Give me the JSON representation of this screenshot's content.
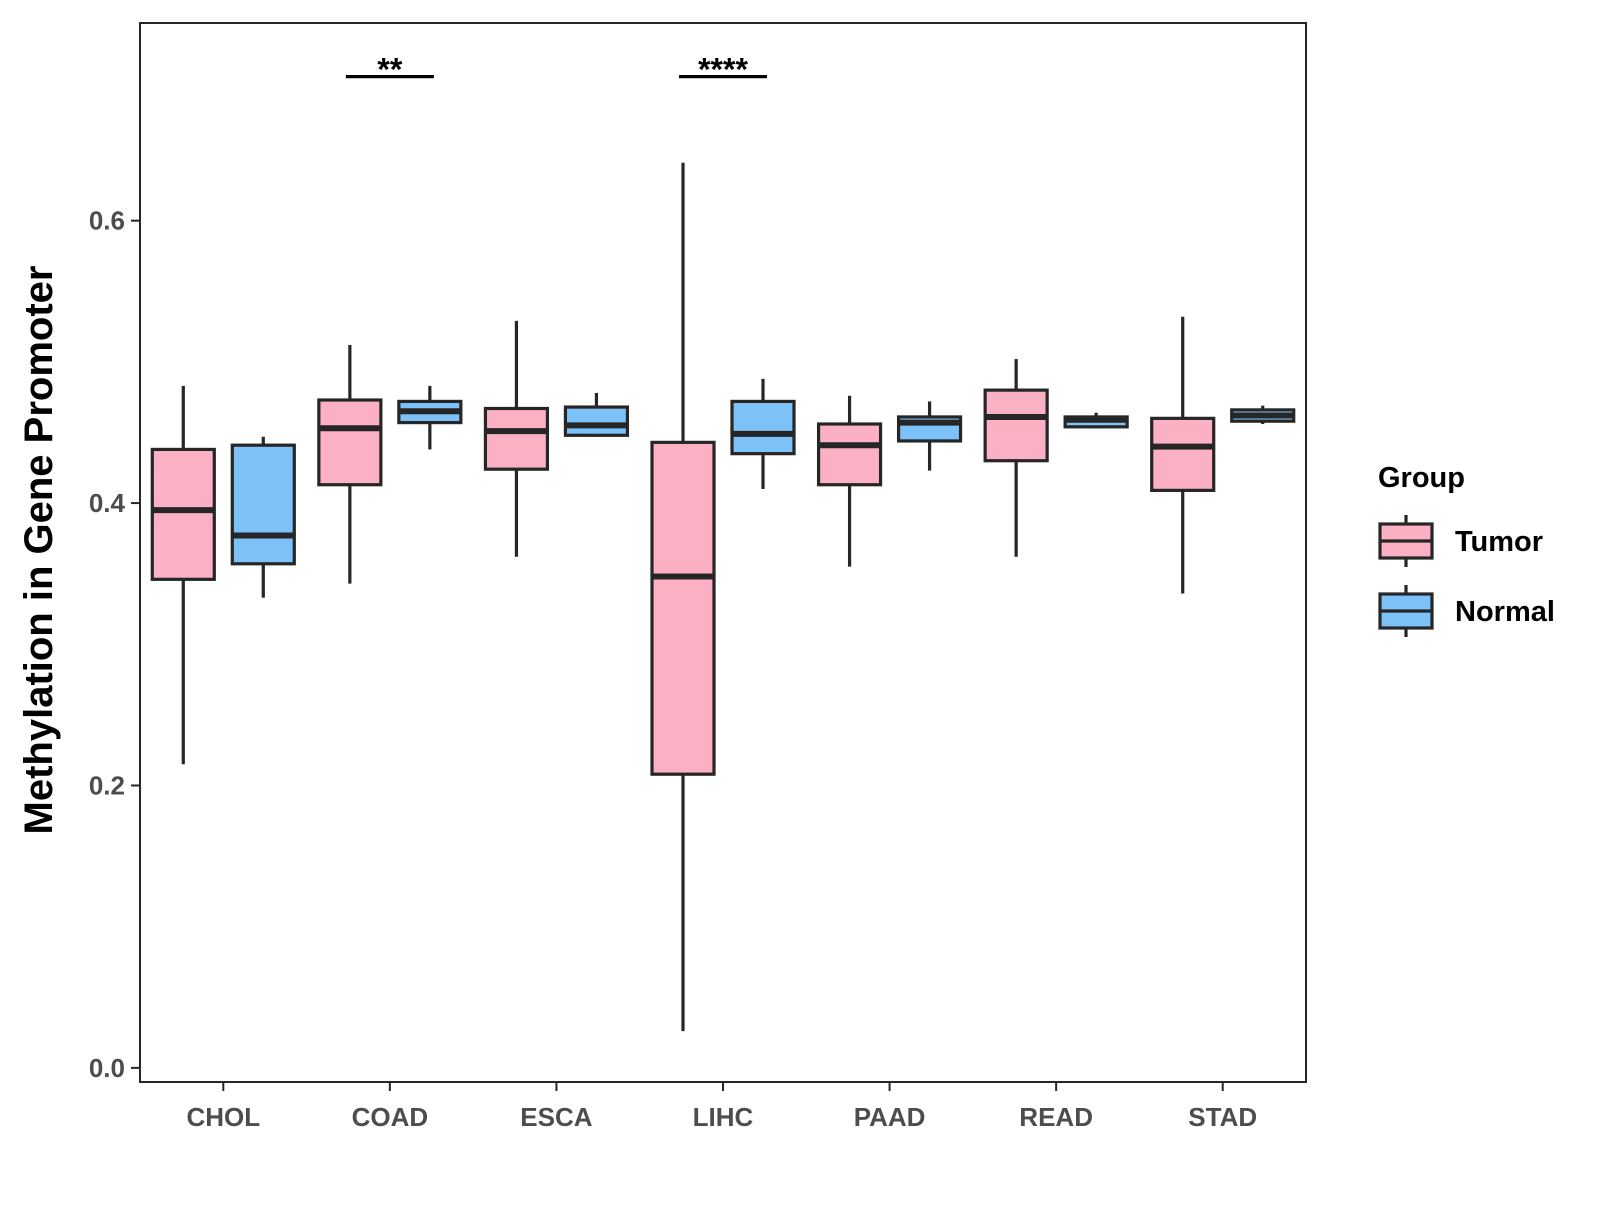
{
  "chart_data": {
    "type": "boxplot",
    "title": "",
    "xlabel": "",
    "ylabel": "Methylation in Gene Promoter",
    "ylim": [
      -0.01,
      0.74
    ],
    "yticks": [
      {
        "value": 0.0,
        "label": "0.0"
      },
      {
        "value": 0.2,
        "label": "0.2"
      },
      {
        "value": 0.4,
        "label": "0.4"
      },
      {
        "value": 0.6,
        "label": "0.6"
      }
    ],
    "categories": [
      "CHOL",
      "COAD",
      "ESCA",
      "LIHC",
      "PAAD",
      "READ",
      "STAD"
    ],
    "legend": {
      "title": "Group",
      "position": "right",
      "items": [
        {
          "name": "Tumor",
          "color": "#fbb1c3"
        },
        {
          "name": "Normal",
          "color": "#7cc1f7"
        }
      ]
    },
    "series": [
      {
        "name": "Tumor",
        "color": "#fbb1c3",
        "boxes": [
          {
            "category": "CHOL",
            "min": 0.215,
            "q1": 0.346,
            "median": 0.395,
            "q3": 0.438,
            "max": 0.483
          },
          {
            "category": "COAD",
            "min": 0.343,
            "q1": 0.413,
            "median": 0.453,
            "q3": 0.473,
            "max": 0.512
          },
          {
            "category": "ESCA",
            "min": 0.362,
            "q1": 0.424,
            "median": 0.451,
            "q3": 0.467,
            "max": 0.529
          },
          {
            "category": "LIHC",
            "min": 0.026,
            "q1": 0.208,
            "median": 0.348,
            "q3": 0.443,
            "max": 0.641
          },
          {
            "category": "PAAD",
            "min": 0.355,
            "q1": 0.413,
            "median": 0.441,
            "q3": 0.456,
            "max": 0.476
          },
          {
            "category": "READ",
            "min": 0.362,
            "q1": 0.43,
            "median": 0.461,
            "q3": 0.48,
            "max": 0.502
          },
          {
            "category": "STAD",
            "min": 0.336,
            "q1": 0.409,
            "median": 0.44,
            "q3": 0.46,
            "max": 0.532
          }
        ]
      },
      {
        "name": "Normal",
        "color": "#7cc1f7",
        "boxes": [
          {
            "category": "CHOL",
            "min": 0.333,
            "q1": 0.357,
            "median": 0.377,
            "q3": 0.441,
            "max": 0.447
          },
          {
            "category": "COAD",
            "min": 0.438,
            "q1": 0.457,
            "median": 0.465,
            "q3": 0.472,
            "max": 0.483
          },
          {
            "category": "ESCA",
            "min": 0.447,
            "q1": 0.448,
            "median": 0.455,
            "q3": 0.468,
            "max": 0.478
          },
          {
            "category": "LIHC",
            "min": 0.41,
            "q1": 0.435,
            "median": 0.449,
            "q3": 0.472,
            "max": 0.488
          },
          {
            "category": "PAAD",
            "min": 0.423,
            "q1": 0.444,
            "median": 0.457,
            "q3": 0.461,
            "max": 0.472
          },
          {
            "category": "READ",
            "min": 0.453,
            "q1": 0.454,
            "median": 0.459,
            "q3": 0.461,
            "max": 0.464
          },
          {
            "category": "STAD",
            "min": 0.456,
            "q1": 0.458,
            "median": 0.462,
            "q3": 0.466,
            "max": 0.469
          }
        ]
      }
    ],
    "annotations": [
      {
        "category": "COAD",
        "label": "**",
        "y": 0.702
      },
      {
        "category": "LIHC",
        "label": "****",
        "y": 0.702
      }
    ]
  }
}
